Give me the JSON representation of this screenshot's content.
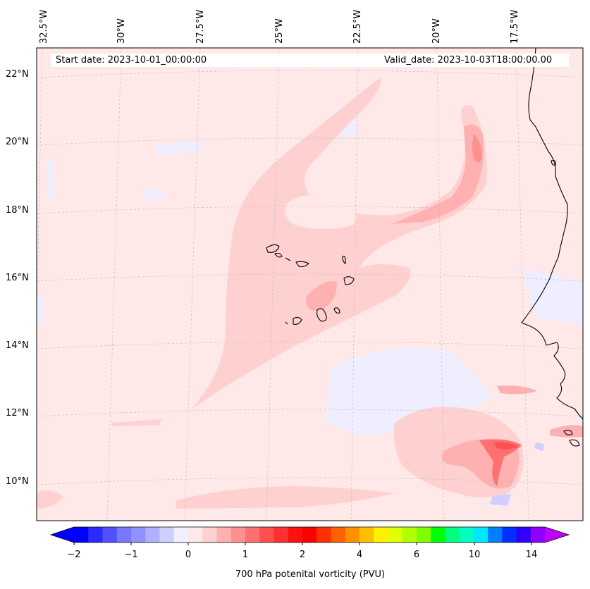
{
  "header": {
    "start_date": "Start date: 2023-10-01_00:00:00",
    "valid_date": "Valid_date: 2023-10-03T18:00:00.00"
  },
  "longitude_labels": [
    "32.5°W",
    "30°W",
    "27.5°W",
    "25°W",
    "22.5°W",
    "20°W",
    "17.5°W"
  ],
  "latitude_labels": [
    "22°N",
    "20°N",
    "18°N",
    "16°N",
    "14°N",
    "12°N",
    "10°N"
  ],
  "colorbar": {
    "title": "700 hPa potenital vorticity (PVU)",
    "tick_labels": [
      "−2",
      "−1",
      "0",
      "1",
      "2",
      "4",
      "6",
      "10",
      "14"
    ],
    "colors": [
      "#0000ff",
      "#2b2bff",
      "#5050ff",
      "#7878ff",
      "#9090ff",
      "#b0b0ff",
      "#d0d0ff",
      "#f0f0ff",
      "#ffe8e8",
      "#ffd0d0",
      "#ffb0b0",
      "#ff9090",
      "#ff7070",
      "#ff5050",
      "#ff3030",
      "#ff1010",
      "#ff0000",
      "#ff3000",
      "#ff6000",
      "#ff9000",
      "#ffc000",
      "#fff000",
      "#e0ff00",
      "#b0ff00",
      "#80ff00",
      "#00ff00",
      "#00ff80",
      "#00ffc0",
      "#00e8ff",
      "#0080ff",
      "#0030ff",
      "#3000ff",
      "#9000ff"
    ],
    "extend_low_color": "#0000ff",
    "extend_high_color": "#c000ff"
  },
  "legend_colors": {
    "background_pv": "#ffe8e8",
    "negative_pv": "#eeeeff",
    "moderate_pv": "#ffd0d0",
    "high_pv": "#ff9090",
    "peak_pv": "#ff5050",
    "coastline": "#000000"
  }
}
